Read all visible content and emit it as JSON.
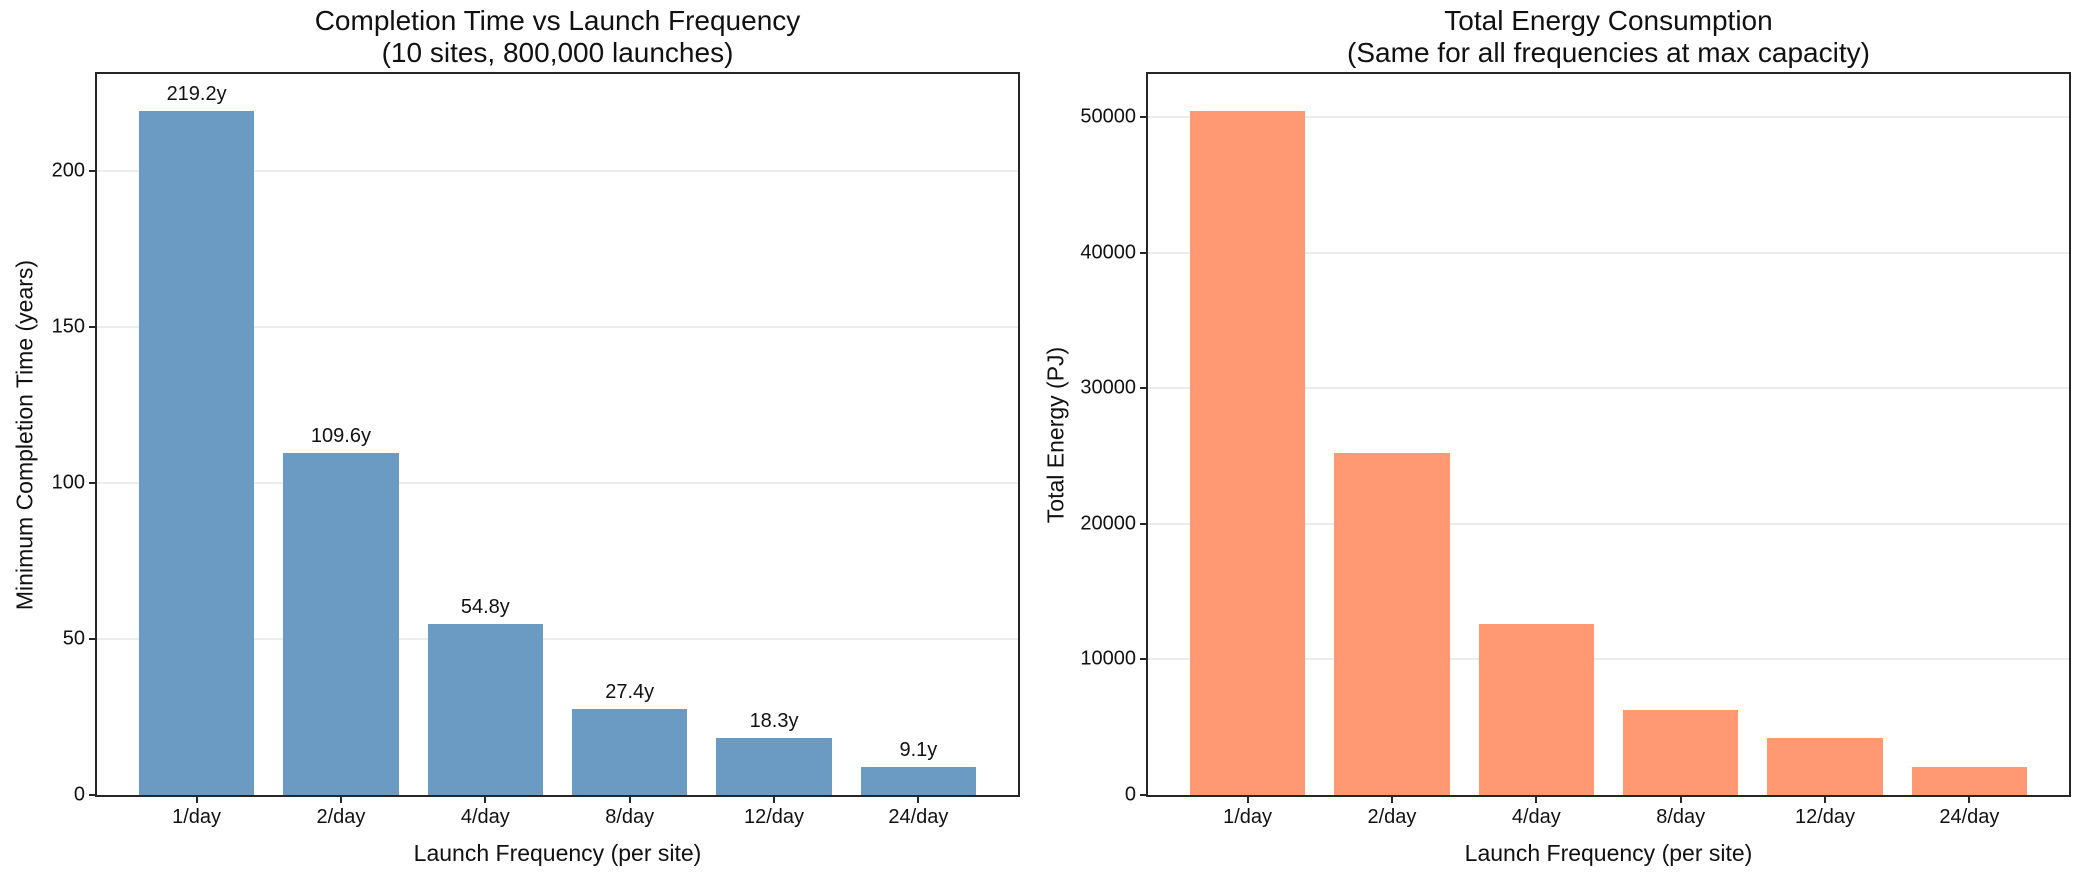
{
  "chart_data": [
    {
      "type": "bar",
      "title": "Completion Time vs Launch Frequency",
      "subtitle": "(10 sites, 800,000 launches)",
      "xlabel": "Launch Frequency (per site)",
      "ylabel": "Minimum Completion Time (years)",
      "categories": [
        "1/day",
        "2/day",
        "4/day",
        "8/day",
        "12/day",
        "24/day"
      ],
      "values": [
        219.2,
        109.6,
        54.8,
        27.4,
        18.3,
        9.1
      ],
      "bar_value_labels": [
        "219.2y",
        "109.6y",
        "54.8y",
        "27.4y",
        "18.3y",
        "9.1y"
      ],
      "yticks": [
        0,
        50,
        100,
        150,
        200
      ],
      "ylim": [
        0,
        231
      ],
      "grid": "horizontal",
      "legend": "none",
      "bar_color": "#6b9bc3"
    },
    {
      "type": "bar",
      "title": "Total Energy Consumption",
      "subtitle": "(Same for all frequencies at max capacity)",
      "xlabel": "Launch Frequency (per site)",
      "ylabel": "Total Energy (PJ)",
      "categories": [
        "1/day",
        "2/day",
        "4/day",
        "8/day",
        "12/day",
        "24/day"
      ],
      "values": [
        50500,
        25250,
        12600,
        6300,
        4200,
        2100
      ],
      "bar_value_labels": null,
      "yticks": [
        0,
        10000,
        20000,
        30000,
        40000,
        50000
      ],
      "ylim": [
        0,
        53200
      ],
      "grid": "horizontal",
      "legend": "none",
      "bar_color": "#ff9973"
    }
  ]
}
